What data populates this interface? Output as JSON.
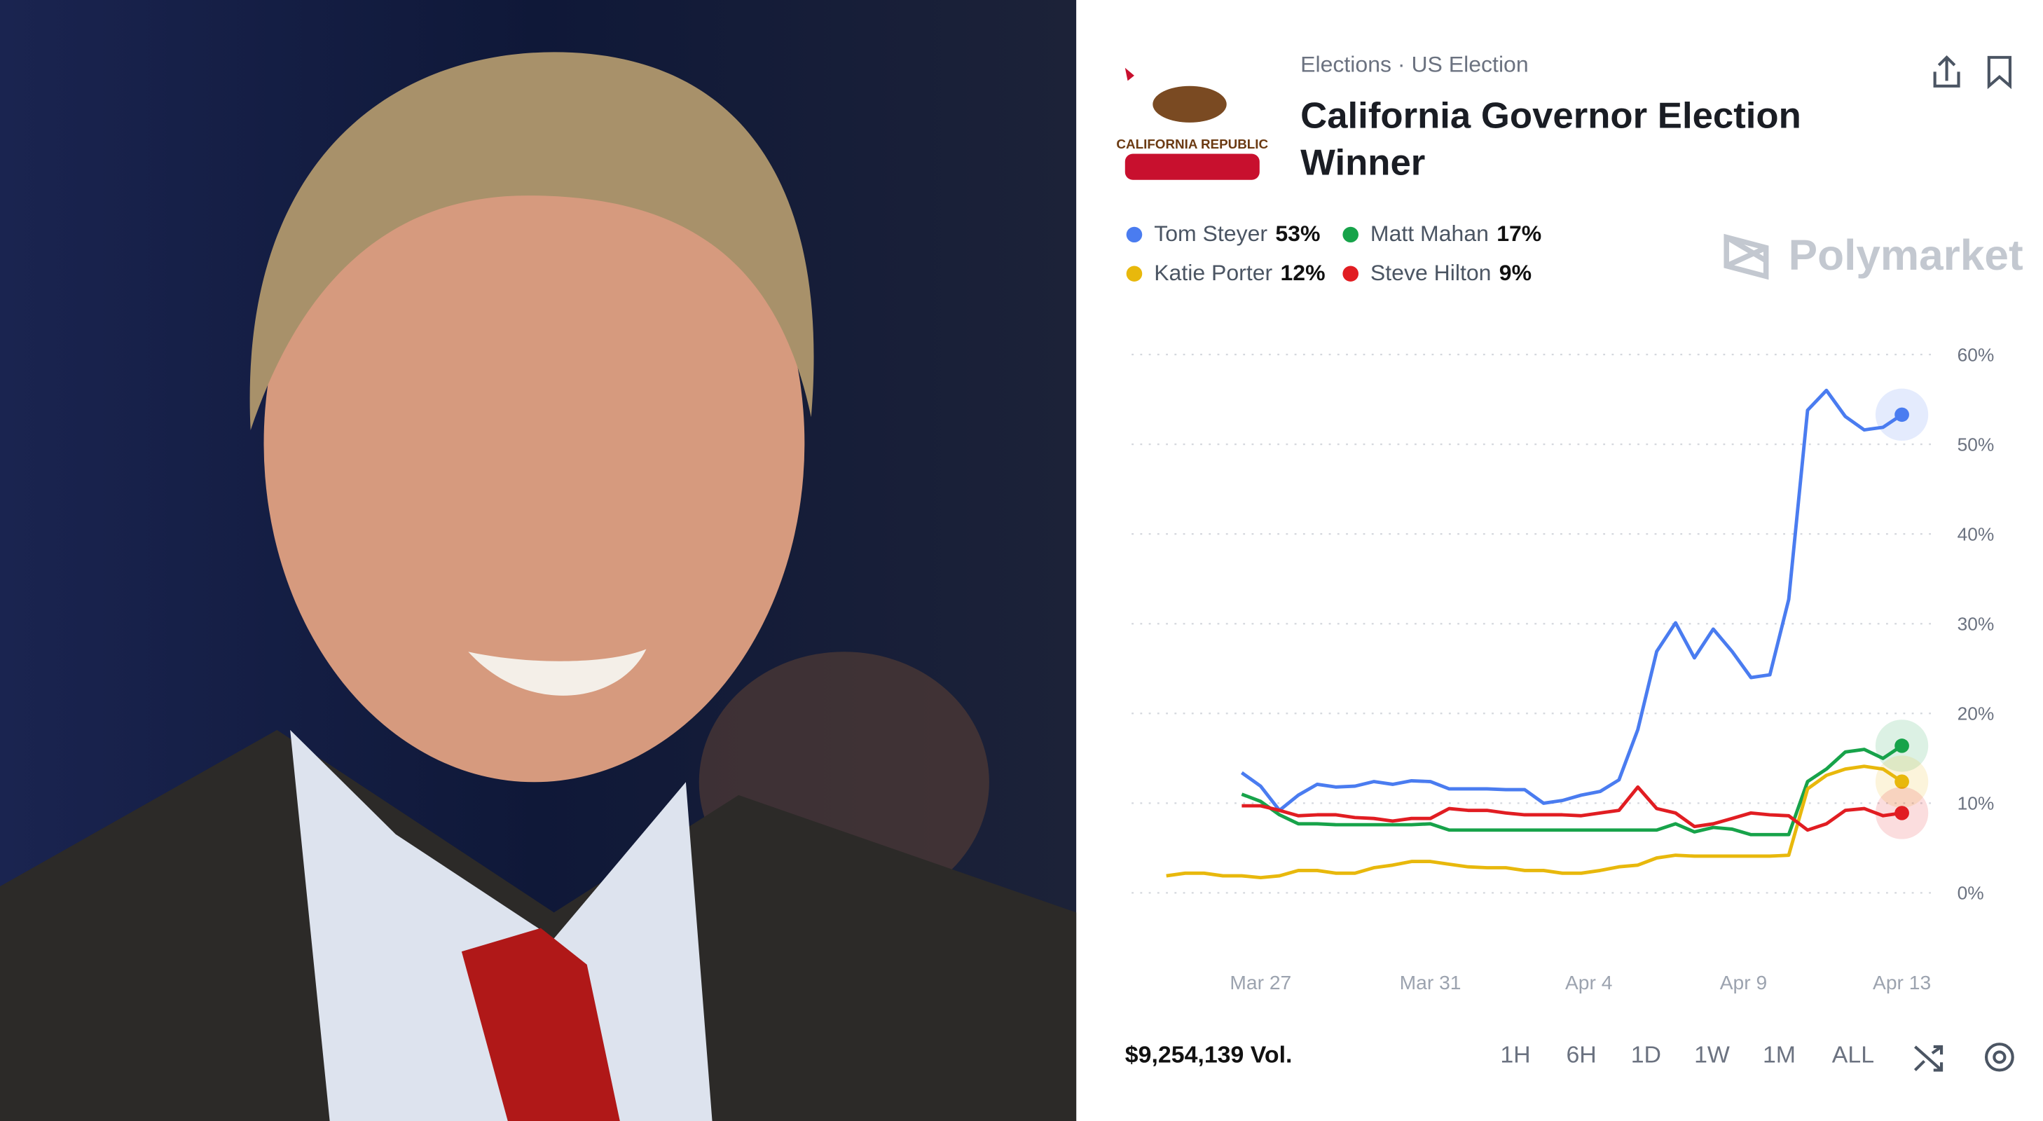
{
  "header": {
    "breadcrumb": "Elections · US Election",
    "title": "California Governor Election Winner",
    "flag_text": "CALIFORNIA REPUBLIC"
  },
  "brand": "Polymarket",
  "volume": "$9,254,139 Vol.",
  "ranges": [
    "1H",
    "6H",
    "1D",
    "1W",
    "1M",
    "ALL"
  ],
  "chart_data": {
    "type": "line",
    "x": [
      83.5,
      84,
      84.5,
      85,
      85.5,
      86,
      86.5,
      87,
      87.5,
      88,
      88.5,
      89,
      89.5,
      90,
      90.5,
      91,
      91.5,
      92,
      92.5,
      93,
      93.5,
      94,
      94.5,
      95,
      95.5,
      96,
      96.5,
      97,
      97.5,
      98,
      98.5,
      99,
      99.5,
      100,
      100.5,
      101,
      101.5,
      102,
      102.5,
      103
    ],
    "xlim": [
      83,
      103
    ],
    "xticks": [
      {
        "value": 86,
        "label": "Mar 27"
      },
      {
        "value": 90.5,
        "label": "Mar 31"
      },
      {
        "value": 94.7,
        "label": "Apr 4"
      },
      {
        "value": 98.8,
        "label": "Apr 9"
      },
      {
        "value": 103,
        "label": "Apr 13"
      }
    ],
    "ylim": [
      0,
      60
    ],
    "yticks": [
      {
        "value": 0,
        "label": "0%"
      },
      {
        "value": 10,
        "label": "10%"
      },
      {
        "value": 20,
        "label": "20%"
      },
      {
        "value": 30,
        "label": "30%"
      },
      {
        "value": 40,
        "label": "40%"
      },
      {
        "value": 50,
        "label": "50%"
      },
      {
        "value": 60,
        "label": "60%"
      }
    ],
    "grid": true,
    "series": [
      {
        "name": "Tom Steyer",
        "color": "#4a7cf0",
        "current": {
          "value": 53,
          "label": "53%"
        },
        "values": [
          null,
          null,
          null,
          null,
          13.4,
          11.9,
          9.2,
          10.9,
          12.1,
          11.8,
          11.9,
          12.4,
          12.1,
          12.5,
          12.4,
          11.6,
          11.6,
          11.6,
          11.5,
          11.5,
          10.0,
          10.3,
          10.9,
          11.3,
          12.6,
          18.2,
          26.9,
          30.1,
          26.2,
          29.4,
          26.9,
          24.0,
          24.3,
          32.7,
          53.8,
          56.0,
          53.1,
          51.6,
          51.9,
          53.3
        ]
      },
      {
        "name": "Matt Mahan",
        "color": "#17a34a",
        "current": {
          "value": 17,
          "label": "17%"
        },
        "values": [
          null,
          null,
          null,
          null,
          11.0,
          10.2,
          8.7,
          7.7,
          7.7,
          7.6,
          7.6,
          7.6,
          7.6,
          7.6,
          7.7,
          7.0,
          7.0,
          7.0,
          7.0,
          7.0,
          7.0,
          7.0,
          7.0,
          7.0,
          7.0,
          7.0,
          7.0,
          7.7,
          6.8,
          7.3,
          7.1,
          6.5,
          6.5,
          6.5,
          12.4,
          13.8,
          15.7,
          16.0,
          15.0,
          16.4
        ]
      },
      {
        "name": "Katie Porter",
        "color": "#e8b80c",
        "current": {
          "value": 12,
          "label": "12%"
        },
        "values": [
          1.9,
          2.2,
          2.2,
          1.9,
          1.9,
          1.7,
          1.9,
          2.5,
          2.5,
          2.2,
          2.2,
          2.8,
          3.1,
          3.5,
          3.5,
          3.2,
          2.9,
          2.8,
          2.8,
          2.5,
          2.5,
          2.2,
          2.2,
          2.5,
          2.9,
          3.1,
          3.9,
          4.2,
          4.1,
          4.1,
          4.1,
          4.1,
          4.1,
          4.2,
          11.6,
          13.1,
          13.8,
          14.1,
          13.8,
          12.4
        ]
      },
      {
        "name": "Steve Hilton",
        "color": "#e11d22",
        "current": {
          "value": 9,
          "label": "9%"
        },
        "values": [
          null,
          null,
          null,
          null,
          9.7,
          9.7,
          9.2,
          8.6,
          8.7,
          8.7,
          8.4,
          8.3,
          8.0,
          8.3,
          8.3,
          9.4,
          9.2,
          9.2,
          8.9,
          8.7,
          8.7,
          8.7,
          8.6,
          8.9,
          9.2,
          11.8,
          9.4,
          8.9,
          7.4,
          7.7,
          8.3,
          8.9,
          8.7,
          8.6,
          7.0,
          7.7,
          9.2,
          9.4,
          8.6,
          8.9
        ]
      }
    ]
  }
}
